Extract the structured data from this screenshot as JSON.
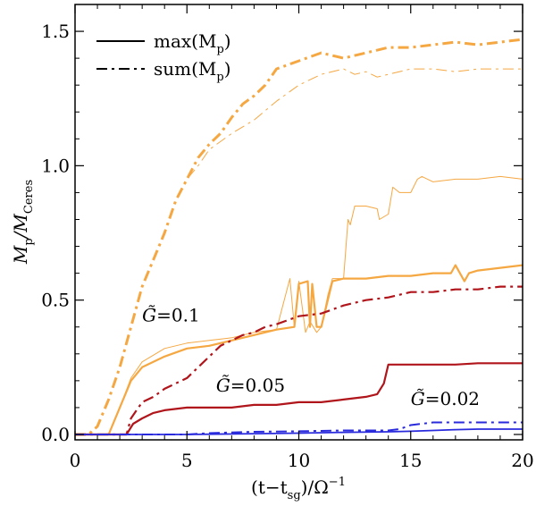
{
  "chart_data": {
    "type": "line",
    "title": "",
    "xlabel": {
      "pre": "(t−t",
      "sub": "sg",
      "post": ")/Ω",
      "sup": "−1"
    },
    "ylabel": {
      "pre": "M",
      "sub1": "p",
      "mid": "/M",
      "sub2": "Ceres"
    },
    "xlim": [
      0,
      20
    ],
    "ylim": [
      -0.02,
      1.6
    ],
    "xticks": [
      0,
      5,
      10,
      15,
      20
    ],
    "xtick_labels": [
      "0",
      "5",
      "10",
      "15",
      "20"
    ],
    "yticks": [
      0.0,
      0.5,
      1.0,
      1.5
    ],
    "ytick_labels": [
      "0.0",
      "0.5",
      "1.0",
      "1.5"
    ],
    "legend": [
      {
        "label": "max(M",
        "sub": "p",
        "close": ")",
        "style": "solid"
      },
      {
        "label": "sum(M",
        "sub": "p",
        "close": ")",
        "style": "dashdot"
      }
    ],
    "annotations": [
      {
        "prefix": "G̃",
        "text": "=0.1",
        "x": 3.0,
        "y": 0.42,
        "color": "#f5a742"
      },
      {
        "prefix": "G̃",
        "text": "=0.05",
        "x": 6.3,
        "y": 0.16,
        "color": "#b0151b"
      },
      {
        "prefix": "G̃",
        "text": "=0.02",
        "x": 15.0,
        "y": 0.11,
        "color": "#2a2add"
      }
    ],
    "series": [
      {
        "name": "G=0.1 sum (thick)",
        "color": "#f5a742",
        "style": "dashdot",
        "width": 3.0,
        "x": [
          0,
          0.6,
          1.0,
          1.5,
          2.0,
          2.5,
          3.0,
          3.5,
          4.0,
          4.5,
          5.0,
          5.5,
          6.0,
          6.5,
          7.0,
          7.5,
          8.0,
          8.5,
          9.0,
          10.0,
          11.0,
          12.0,
          13.0,
          14.0,
          15.0,
          16.0,
          17.0,
          18.0,
          19.0,
          20.0
        ],
        "y": [
          0.0,
          0.0,
          0.03,
          0.13,
          0.25,
          0.4,
          0.55,
          0.65,
          0.75,
          0.87,
          0.95,
          1.03,
          1.08,
          1.12,
          1.18,
          1.23,
          1.26,
          1.3,
          1.36,
          1.39,
          1.42,
          1.4,
          1.42,
          1.44,
          1.44,
          1.45,
          1.46,
          1.45,
          1.46,
          1.47
        ]
      },
      {
        "name": "G=0.1 sum (thin)",
        "color": "#f5a742",
        "style": "dashdot",
        "width": 1.0,
        "x": [
          0,
          0.6,
          1.0,
          1.5,
          2.0,
          2.5,
          3.0,
          3.5,
          4.0,
          4.5,
          5.0,
          5.5,
          6.0,
          7.0,
          8.0,
          9.0,
          10.0,
          11.0,
          12.0,
          12.5,
          13.0,
          13.5,
          14.0,
          15.0,
          16.0,
          17.0,
          18.0,
          19.0,
          20.0
        ],
        "y": [
          0.0,
          0.0,
          0.03,
          0.13,
          0.25,
          0.4,
          0.55,
          0.65,
          0.75,
          0.87,
          0.95,
          1.0,
          1.06,
          1.12,
          1.17,
          1.24,
          1.3,
          1.34,
          1.36,
          1.34,
          1.35,
          1.33,
          1.34,
          1.36,
          1.36,
          1.35,
          1.36,
          1.36,
          1.36
        ]
      },
      {
        "name": "G=0.1 max (thick)",
        "color": "#f5a742",
        "style": "solid",
        "width": 2.2,
        "x": [
          0,
          1.5,
          2.0,
          2.5,
          3.0,
          4.0,
          5.0,
          6.0,
          7.0,
          8.0,
          9.0,
          9.8,
          10.0,
          10.4,
          10.5,
          10.6,
          10.8,
          11.0,
          11.5,
          12.0,
          13.0,
          14.0,
          15.0,
          16.0,
          16.8,
          17.0,
          17.4,
          17.6,
          18.0,
          19.0,
          20.0
        ],
        "y": [
          0.0,
          0.0,
          0.1,
          0.2,
          0.25,
          0.29,
          0.32,
          0.33,
          0.35,
          0.37,
          0.39,
          0.4,
          0.56,
          0.57,
          0.4,
          0.56,
          0.4,
          0.4,
          0.57,
          0.58,
          0.58,
          0.59,
          0.59,
          0.6,
          0.6,
          0.63,
          0.57,
          0.6,
          0.61,
          0.62,
          0.63
        ]
      },
      {
        "name": "G=0.1 max (thin)",
        "color": "#f5a742",
        "style": "solid",
        "width": 1.0,
        "x": [
          0,
          1.5,
          2.0,
          2.5,
          3.0,
          4.0,
          5.0,
          6.0,
          7.0,
          8.0,
          9.0,
          9.6,
          9.8,
          10.0,
          10.3,
          10.5,
          10.8,
          11.0,
          11.3,
          11.5,
          12.0,
          12.2,
          12.3,
          12.5,
          13.0,
          13.5,
          13.6,
          14.0,
          14.2,
          14.5,
          15.0,
          15.3,
          15.5,
          16.0,
          17.0,
          18.0,
          19.0,
          20.0
        ],
        "y": [
          0.0,
          0.0,
          0.1,
          0.21,
          0.27,
          0.32,
          0.34,
          0.35,
          0.36,
          0.38,
          0.39,
          0.58,
          0.4,
          0.57,
          0.38,
          0.42,
          0.38,
          0.4,
          0.52,
          0.58,
          0.58,
          0.8,
          0.78,
          0.85,
          0.85,
          0.84,
          0.8,
          0.82,
          0.92,
          0.9,
          0.9,
          0.95,
          0.96,
          0.94,
          0.95,
          0.95,
          0.96,
          0.95
        ]
      },
      {
        "name": "G=0.05 sum",
        "color": "#b0151b",
        "style": "dashdot",
        "width": 2.2,
        "x": [
          0,
          2.3,
          2.5,
          3.0,
          3.5,
          4.0,
          4.5,
          5.0,
          5.5,
          6.0,
          6.5,
          7.0,
          7.5,
          8.0,
          8.5,
          9.0,
          10.0,
          11.0,
          12.0,
          13.0,
          14.0,
          15.0,
          16.0,
          17.0,
          18.0,
          19.0,
          20.0
        ],
        "y": [
          0.0,
          0.0,
          0.06,
          0.12,
          0.14,
          0.17,
          0.19,
          0.21,
          0.25,
          0.29,
          0.33,
          0.35,
          0.37,
          0.38,
          0.4,
          0.41,
          0.44,
          0.45,
          0.48,
          0.5,
          0.51,
          0.53,
          0.53,
          0.54,
          0.54,
          0.55,
          0.55
        ]
      },
      {
        "name": "G=0.05 max",
        "color": "#b0151b",
        "style": "solid",
        "width": 2.2,
        "x": [
          0,
          2.3,
          2.6,
          3.0,
          3.5,
          4.0,
          5.0,
          6.0,
          7.0,
          8.0,
          9.0,
          10.0,
          11.0,
          12.0,
          13.0,
          13.5,
          13.8,
          14.0,
          15.0,
          16.0,
          17.0,
          18.0,
          19.0,
          20.0
        ],
        "y": [
          0.0,
          0.0,
          0.04,
          0.06,
          0.08,
          0.09,
          0.1,
          0.1,
          0.1,
          0.11,
          0.11,
          0.12,
          0.12,
          0.13,
          0.14,
          0.15,
          0.19,
          0.26,
          0.26,
          0.26,
          0.26,
          0.265,
          0.265,
          0.265
        ]
      },
      {
        "name": "G=0.02 sum",
        "color": "#2a2add",
        "style": "dashdot",
        "width": 2.0,
        "x": [
          0,
          5.0,
          6.0,
          8.0,
          10.0,
          12.0,
          14.0,
          14.5,
          15.0,
          15.5,
          16.0,
          17.0,
          18.0,
          19.0,
          20.0
        ],
        "y": [
          0.0,
          0.0,
          0.005,
          0.01,
          0.012,
          0.015,
          0.015,
          0.02,
          0.035,
          0.04,
          0.045,
          0.045,
          0.045,
          0.045,
          0.045
        ]
      },
      {
        "name": "G=0.02 max",
        "color": "#2a2add",
        "style": "solid",
        "width": 1.8,
        "x": [
          0,
          5.0,
          8.0,
          10.0,
          12.0,
          14.0,
          15.0,
          16.0,
          17.0,
          18.0,
          19.0,
          20.0
        ],
        "y": [
          0.0,
          0.0,
          0.003,
          0.005,
          0.008,
          0.01,
          0.012,
          0.015,
          0.018,
          0.02,
          0.02,
          0.02
        ]
      }
    ]
  }
}
